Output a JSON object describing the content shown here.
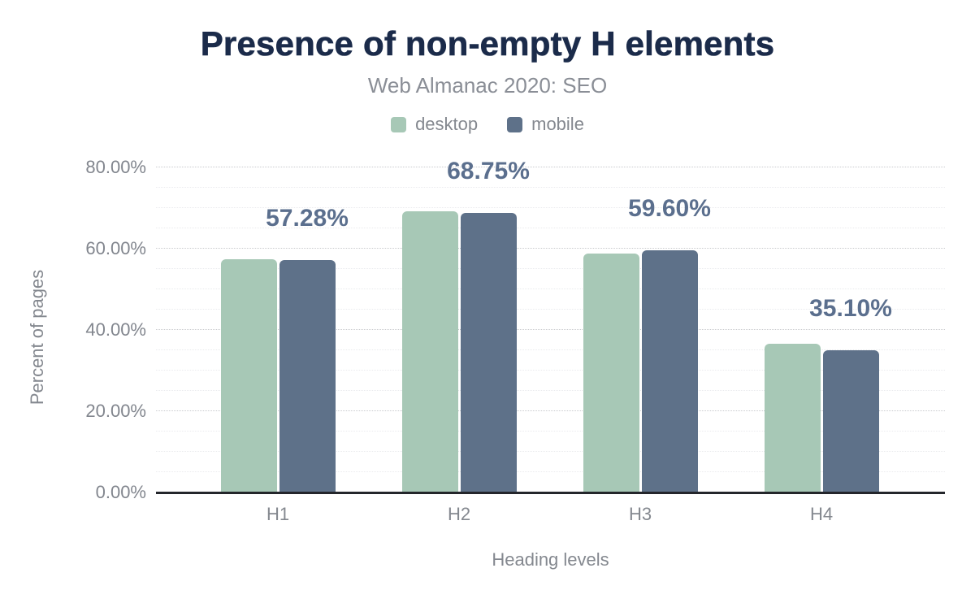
{
  "chart_data": {
    "type": "bar",
    "title": "Presence of non-empty H elements",
    "subtitle": "Web Almanac 2020: SEO",
    "categories": [
      "H1",
      "H2",
      "H3",
      "H4"
    ],
    "series": [
      {
        "name": "desktop",
        "color": "#a7c8b6",
        "values": [
          57.5,
          69.2,
          58.9,
          36.6
        ]
      },
      {
        "name": "mobile",
        "color": "#5e7189",
        "values": [
          57.28,
          68.75,
          59.6,
          35.1
        ]
      }
    ],
    "bar_labels": [
      "57.28%",
      "68.75%",
      "59.60%",
      "35.10%"
    ],
    "bar_labels_refer_to": "mobile",
    "xlabel": "Heading levels",
    "ylabel": "Percent of pages",
    "y_ticks": [
      {
        "value": 0,
        "label": "0.00%"
      },
      {
        "value": 20,
        "label": "20.00%"
      },
      {
        "value": 40,
        "label": "40.00%"
      },
      {
        "value": 60,
        "label": "60.00%"
      },
      {
        "value": 80,
        "label": "80.00%"
      }
    ],
    "ylim": [
      0,
      85
    ],
    "grid": {
      "on": true,
      "minor_step": 5,
      "major_step": 20,
      "max": 80
    },
    "legend_position": "top"
  },
  "colors": {
    "background": "#ffffff",
    "title": "#1b2b4a",
    "subtitle": "#8a8e96",
    "axis_text": "#84888f",
    "tick_text": "#82868e",
    "bar_label": "#5b6f8e",
    "axis_line": "#24262b",
    "grid_major": "#c9cacd",
    "grid_minor": "#eaebee",
    "desktop": "#a7c8b6",
    "mobile": "#5e7189"
  }
}
